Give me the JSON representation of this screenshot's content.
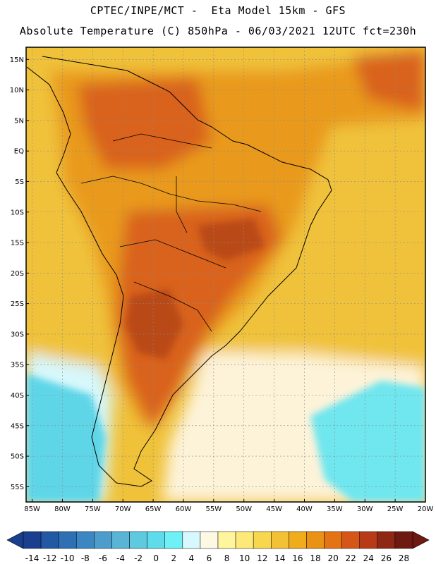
{
  "header": {
    "line1": "CPTEC/INPE/MCT -  Eta Model 15km - GFS",
    "line2": "Absolute Temperature (C) 850hPa - 06/03/2021 12UTC fct=230h"
  },
  "map": {
    "lat_labels": [
      "15N",
      "10N",
      "5N",
      "EQ",
      "5S",
      "10S",
      "15S",
      "20S",
      "25S",
      "30S",
      "35S",
      "40S",
      "45S",
      "50S",
      "55S"
    ],
    "lon_labels": [
      "85W",
      "80W",
      "75W",
      "70W",
      "65W",
      "60W",
      "55W",
      "50W",
      "45W",
      "40W",
      "35W",
      "30W",
      "25W",
      "20W"
    ],
    "lat_values": [
      15,
      10,
      5,
      0,
      -5,
      -10,
      -15,
      -20,
      -25,
      -30,
      -35,
      -40,
      -45,
      -50,
      -55
    ],
    "lon_values": [
      -85,
      -80,
      -75,
      -70,
      -65,
      -60,
      -55,
      -50,
      -45,
      -40,
      -35,
      -30,
      -25,
      -20
    ],
    "lat_range": [
      -57.5,
      17
    ],
    "lon_range": [
      -86,
      -20
    ]
  },
  "colorbar": {
    "labels": [
      "-14",
      "-12",
      "-10",
      "-8",
      "-6",
      "-4",
      "-2",
      "0",
      "2",
      "4",
      "6",
      "8",
      "10",
      "12",
      "14",
      "16",
      "18",
      "20",
      "22",
      "24",
      "26",
      "28"
    ],
    "colors": [
      "#1a3f8f",
      "#2358a4",
      "#2f6fb4",
      "#3c86c2",
      "#4c9dcc",
      "#5ab4d6",
      "#5fc9e0",
      "#5fdceb",
      "#6ff0f6",
      "#d7f8fc",
      "#fdf8e4",
      "#fff59c",
      "#fde97a",
      "#f8d74f",
      "#f2c136",
      "#efac1c",
      "#e99215",
      "#e47313",
      "#d6561a",
      "#b83b17",
      "#8e2714",
      "#6e1a12"
    ]
  },
  "regions": {
    "cold_sw": "#5fd6e8",
    "cold_se": "#6fe6ef",
    "cool": "#d7f8fc",
    "mild": "#fdf3d9",
    "warm": "#f0c23a",
    "hot": "#e99a1b",
    "very_hot": "#d9621a",
    "hottest": "#b94a18"
  }
}
